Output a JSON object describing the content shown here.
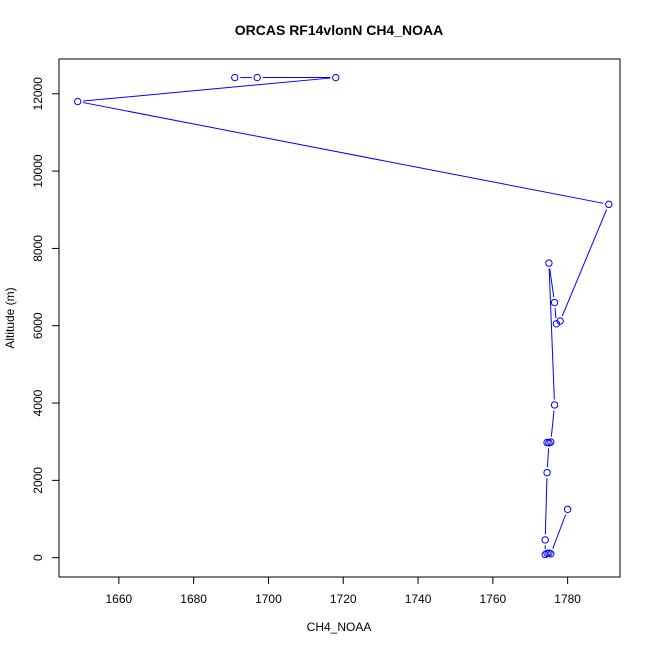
{
  "chart_data": {
    "type": "line",
    "title": "ORCAS RF14vlonN CH4_NOAA",
    "xlabel": "CH4_NOAA",
    "ylabel": "Altitude (m)",
    "xlim": [
      1644,
      1794
    ],
    "ylim": [
      -500,
      12900
    ],
    "xticks": [
      1660,
      1680,
      1700,
      1720,
      1740,
      1760,
      1780
    ],
    "yticks": [
      0,
      2000,
      4000,
      6000,
      8000,
      10000,
      12000
    ],
    "grid": false,
    "series": [
      {
        "color": "#0000ff",
        "marker": "open-circle",
        "points": [
          {
            "x": 1691,
            "y": 12420
          },
          {
            "x": 1697,
            "y": 12420
          },
          {
            "x": 1718,
            "y": 12420
          },
          {
            "x": 1649,
            "y": 11800
          },
          {
            "x": 1791,
            "y": 9140
          },
          {
            "x": 1778,
            "y": 6120
          },
          {
            "x": 1777,
            "y": 6050
          },
          {
            "x": 1776.5,
            "y": 6600
          },
          {
            "x": 1775,
            "y": 7620
          },
          {
            "x": 1776.5,
            "y": 3950
          },
          {
            "x": 1775.5,
            "y": 2990
          },
          {
            "x": 1774.5,
            "y": 2980
          },
          {
            "x": 1775,
            "y": 2970
          },
          {
            "x": 1774.5,
            "y": 2200
          },
          {
            "x": 1774,
            "y": 460
          },
          {
            "x": 1774,
            "y": 80
          },
          {
            "x": 1774.5,
            "y": 110
          },
          {
            "x": 1775,
            "y": 120
          },
          {
            "x": 1775.5,
            "y": 100
          },
          {
            "x": 1780,
            "y": 1250
          }
        ]
      }
    ]
  }
}
